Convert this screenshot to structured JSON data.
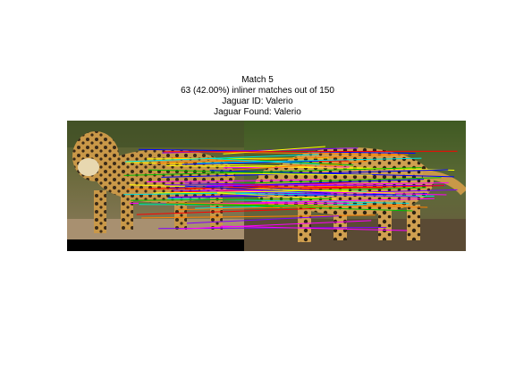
{
  "title": {
    "line1": "Match 5",
    "line2": "63 (42.00%) inliner matches out of 150",
    "line3": "Jaguar ID: Valerio",
    "line4": "Jaguar Found: Valerio"
  },
  "match_summary": {
    "match_index": 5,
    "inliers": 63,
    "total_matches": 150,
    "inlier_percent": 42.0
  },
  "images": {
    "left_label": "jaguar photo (query)",
    "right_label": "jaguar photo (database match)"
  },
  "colors": {
    "background": "#ffffff",
    "pad": "#000000",
    "line_palette": [
      "#ff0000",
      "#00c000",
      "#0000ff",
      "#ff00ff",
      "#00e0e0",
      "#ffff00",
      "#ff8000",
      "#8000ff"
    ]
  }
}
